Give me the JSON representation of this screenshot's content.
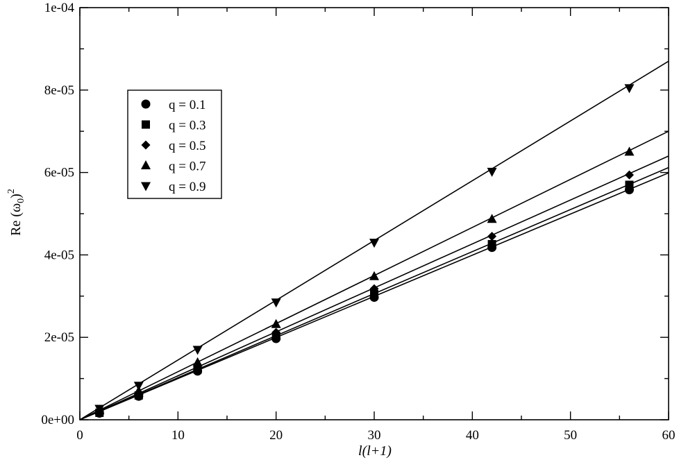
{
  "chart_data": {
    "type": "scatter",
    "title": "",
    "xlabel": "l(l+1)",
    "ylabel": "Re (ω",
    "ylabel_sub": "0",
    "ylabel_tail": ")",
    "ylabel_sup": "2",
    "xlim": [
      0,
      60
    ],
    "ylim": [
      0,
      0.0001
    ],
    "xticks": [
      0,
      10,
      20,
      30,
      40,
      50,
      60
    ],
    "xtick_labels": [
      "0",
      "10",
      "20",
      "30",
      "40",
      "50",
      "60"
    ],
    "yticks": [
      0,
      2e-05,
      4e-05,
      6e-05,
      8e-05,
      0.0001
    ],
    "ytick_labels": [
      "0e+00",
      "2e-05",
      "4e-05",
      "6e-05",
      "8e-05",
      "1e-04"
    ],
    "grid": false,
    "legend_position": "upper-left",
    "x": [
      2,
      6,
      12,
      20,
      30,
      42,
      56
    ],
    "series": [
      {
        "name": "q = 0.1",
        "marker": "circle",
        "values": [
          1.6e-06,
          5.7e-06,
          1.18e-05,
          1.97e-05,
          2.97e-05,
          4.18e-05,
          5.58e-05
        ],
        "fit_at_60": 5.99e-05
      },
      {
        "name": "q = 0.3",
        "marker": "square",
        "values": [
          1.7e-06,
          5.9e-06,
          1.22e-05,
          2.03e-05,
          3.05e-05,
          4.26e-05,
          5.7e-05
        ],
        "fit_at_60": 6.12e-05
      },
      {
        "name": "q = 0.5",
        "marker": "diamond",
        "values": [
          2.1e-06,
          6.3e-06,
          1.27e-05,
          2.12e-05,
          3.18e-05,
          4.45e-05,
          5.94e-05
        ],
        "fit_at_60": 6.4e-05
      },
      {
        "name": "q = 0.7",
        "marker": "triangle-up",
        "values": [
          2.4e-06,
          7e-06,
          1.39e-05,
          2.32e-05,
          3.48e-05,
          4.87e-05,
          6.5e-05
        ],
        "fit_at_60": 7e-05
      },
      {
        "name": "q = 0.9",
        "marker": "triangle-down",
        "values": [
          2.7e-06,
          8.3e-06,
          1.7e-05,
          2.85e-05,
          4.3e-05,
          6.02e-05,
          8.05e-05
        ],
        "fit_at_60": 8.7e-05
      }
    ]
  }
}
